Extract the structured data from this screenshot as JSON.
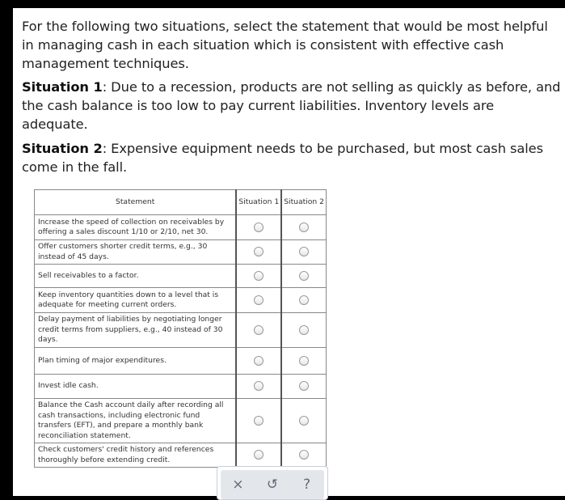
{
  "intro": "For the following two situations, select the statement that would be most helpful in managing cash in each situation which is consistent with effective cash management techniques.",
  "situation1": {
    "label": "Situation 1",
    "text": ": Due to a recession, products are not selling as quickly as before, and the cash balance is too low to pay current liabilities. Inventory levels are adequate."
  },
  "situation2": {
    "label": "Situation 2",
    "text": ": Expensive equipment needs to be purchased, but most cash sales come in the fall."
  },
  "table": {
    "headers": [
      "Statement",
      "Situation 1",
      "Situation 2"
    ],
    "rows": [
      "Increase the speed of collection on receivables by offering a sales discount 1/10 or 2/10, net 30.",
      "Offer customers shorter credit terms, e.g., 30 instead of 45 days.",
      "Sell receivables to a factor.",
      "Keep inventory quantities down to a level that is adequate for meeting current orders.",
      "Delay payment of liabilities by negotiating longer credit terms from suppliers, e.g., 40 instead of 30 days.",
      "Plan timing of major expenditures.",
      "Invest idle cash.",
      "Balance the Cash account daily after recording all cash transactions, including electronic fund transfers (EFT), and prepare a monthly bank reconciliation statement.",
      "Check customers' credit history and references thoroughly before extending credit."
    ]
  },
  "toolbar": {
    "clear": "×",
    "reset": "↺",
    "help": "?"
  }
}
